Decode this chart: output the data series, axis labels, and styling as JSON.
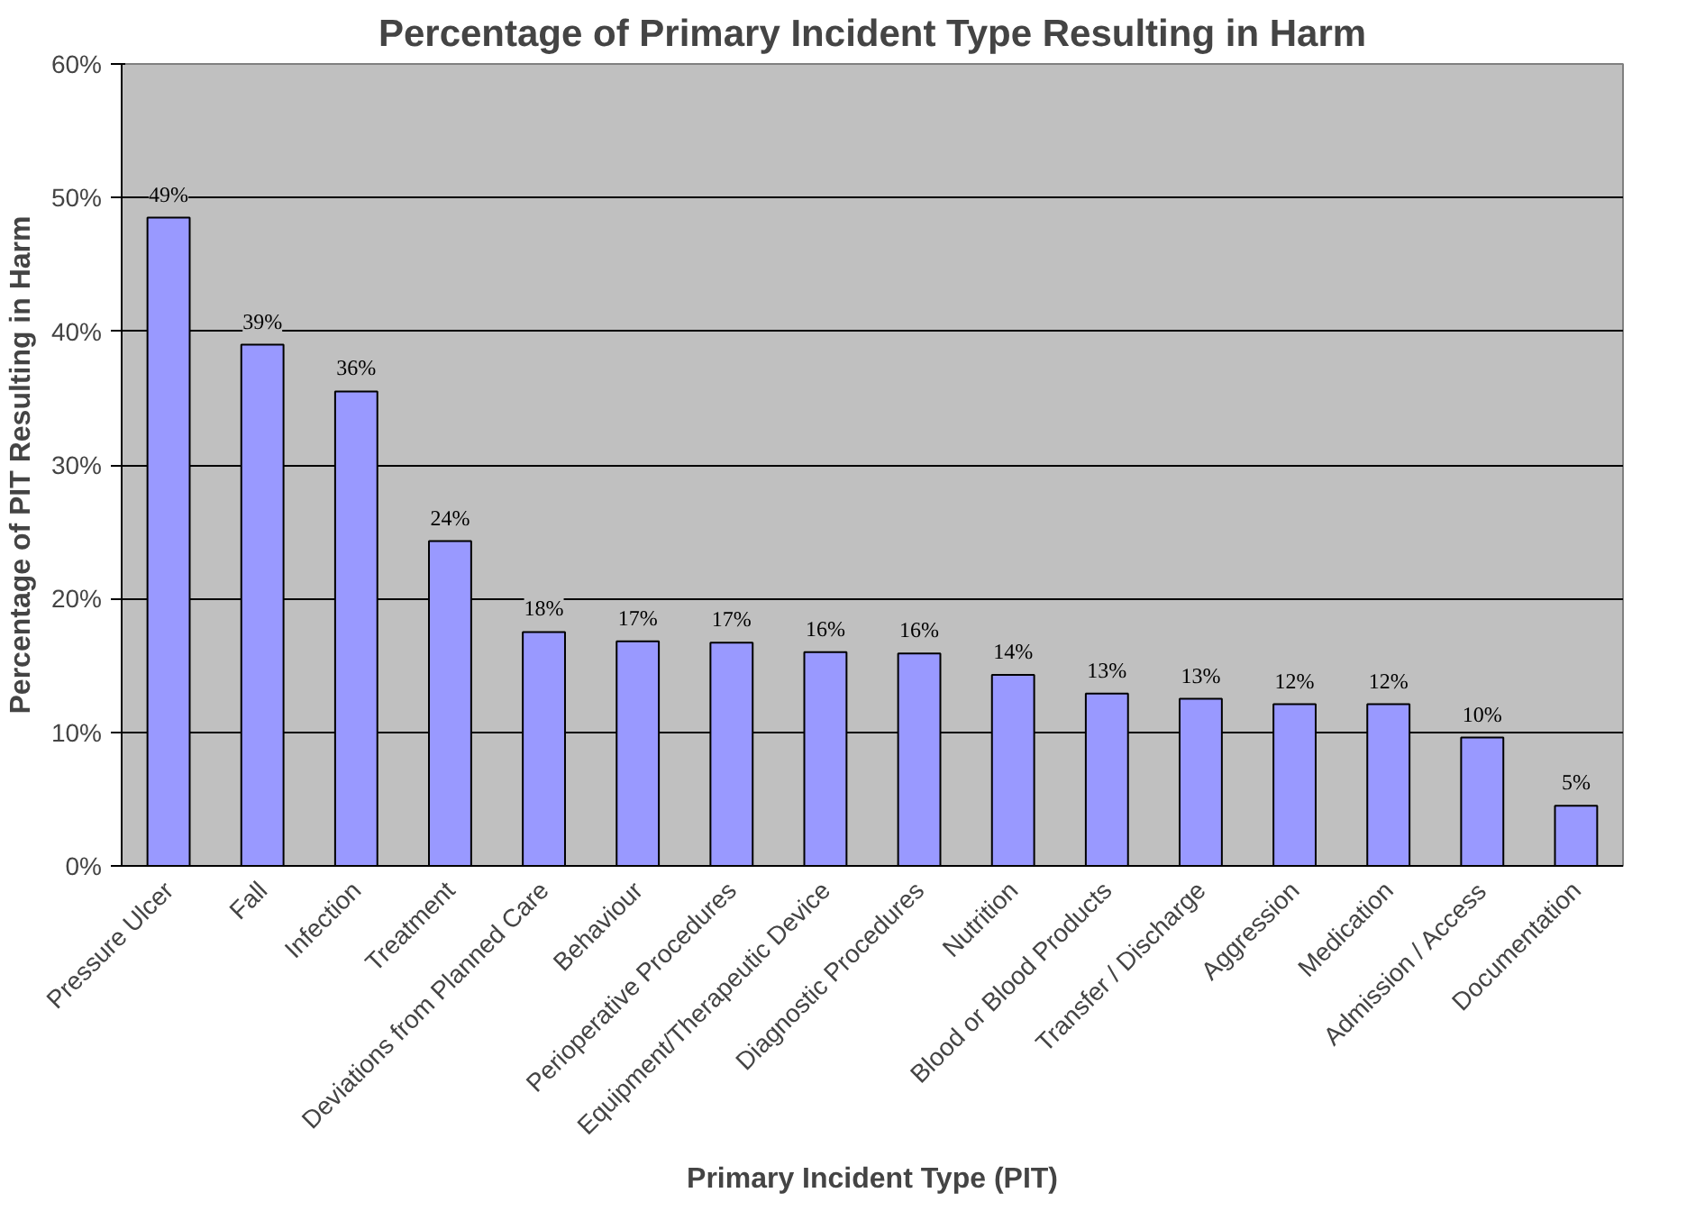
{
  "chart_data": {
    "type": "bar",
    "title": "Percentage of Primary Incident Type Resulting in Harm",
    "xlabel": "Primary Incident Type (PIT)",
    "ylabel": "Percentage of PIT Resulting in Harm",
    "categories": [
      "Pressure Ulcer",
      "Fall",
      "Infection",
      "Treatment",
      "Deviations from Planned Care",
      "Behaviour",
      "Perioperative Procedures",
      "Equipment/Therapeutic Device",
      "Diagnostic Procedures",
      "Nutrition",
      "Blood or Blood Products",
      "Transfer / Discharge",
      "Aggression",
      "Medication",
      "Admission / Access",
      "Documentation"
    ],
    "values": [
      48.5,
      39,
      35.5,
      24.3,
      17.5,
      16.8,
      16.7,
      16,
      15.9,
      14.3,
      12.9,
      12.5,
      12.1,
      12.1,
      9.6,
      4.5
    ],
    "value_labels": [
      "49%",
      "39%",
      "36%",
      "24%",
      "18%",
      "17%",
      "17%",
      "16%",
      "16%",
      "14%",
      "13%",
      "13%",
      "12%",
      "12%",
      "10%",
      "5%"
    ],
    "color": "#9999ff",
    "ylim": [
      0,
      60
    ],
    "yticks": [
      {
        "value": 0,
        "label": "0%"
      },
      {
        "value": 10,
        "label": "10%"
      },
      {
        "value": 20,
        "label": "20%"
      },
      {
        "value": 30,
        "label": "30%"
      },
      {
        "value": 40,
        "label": "40%"
      },
      {
        "value": 50,
        "label": "50%"
      },
      {
        "value": 60,
        "label": "60%"
      }
    ],
    "grid": "y"
  }
}
